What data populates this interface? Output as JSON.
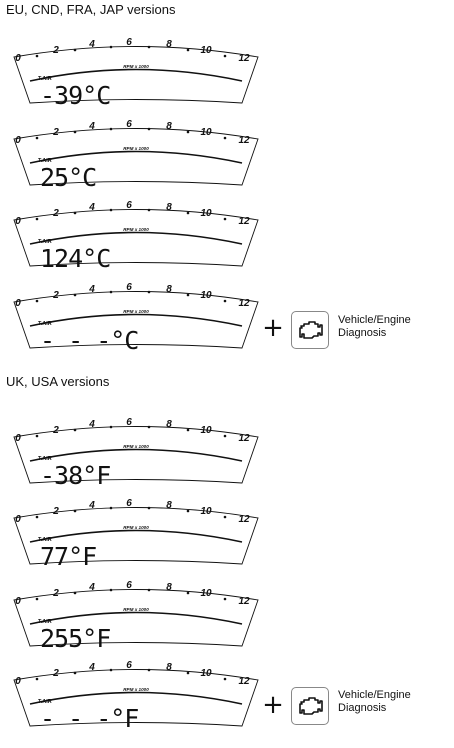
{
  "sections": [
    {
      "heading": "EU, CND, FRA, JAP versions",
      "displays": [
        {
          "rpm_label": "RPM x 1000",
          "tair_label": "T.AIR",
          "reading": "-39°C"
        },
        {
          "rpm_label": "RPM x 1000",
          "tair_label": "T.AIR",
          "reading": "25°C"
        },
        {
          "rpm_label": "RPM x 1000",
          "tair_label": "T.AIR",
          "reading": "124°C"
        },
        {
          "rpm_label": "RPM x 1000",
          "tair_label": "T.AIR",
          "reading": "- - -°C"
        }
      ],
      "diagnosis": {
        "plus": "+",
        "icon": "engine-icon",
        "label_line1": "Vehicle/Engine",
        "label_line2": "Diagnosis"
      }
    },
    {
      "heading": "UK, USA versions",
      "displays": [
        {
          "rpm_label": "RPM x 1000",
          "tair_label": "T.AIR",
          "reading": "-38°F"
        },
        {
          "rpm_label": "RPM x 1000",
          "tair_label": "T.AIR",
          "reading": "77°F"
        },
        {
          "rpm_label": "RPM x 1000",
          "tair_label": "T.AIR",
          "reading": "255°F"
        },
        {
          "rpm_label": "RPM x 1000",
          "tair_label": "T.AIR",
          "reading": "- - -°F"
        }
      ],
      "diagnosis": {
        "plus": "+",
        "icon": "engine-icon",
        "label_line1": "Vehicle/Engine",
        "label_line2": "Diagnosis"
      }
    }
  ],
  "tach_scale": [
    "0",
    "2",
    "4",
    "6",
    "8",
    "10",
    "12"
  ]
}
